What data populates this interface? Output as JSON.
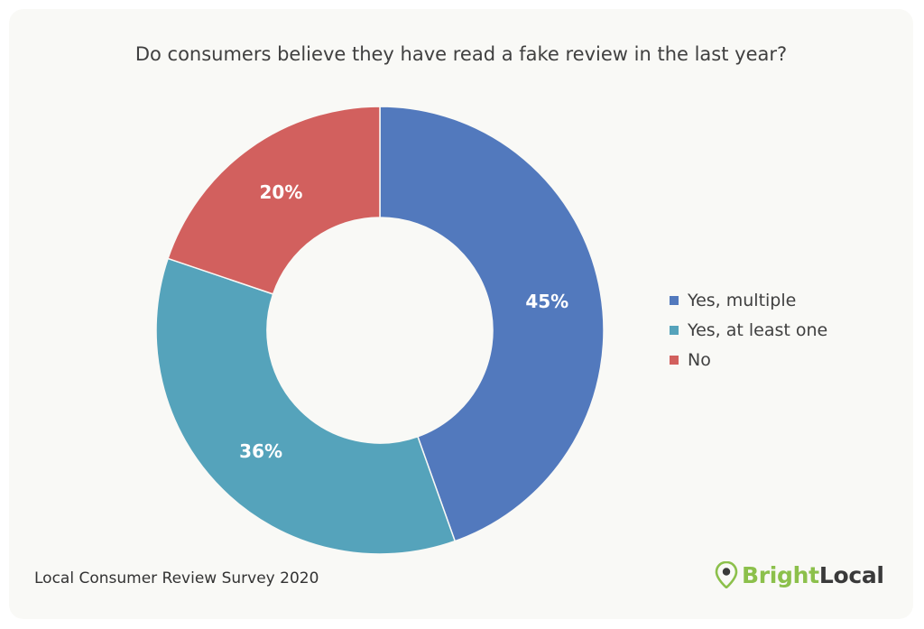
{
  "chart_data": {
    "type": "pie",
    "variant": "donut",
    "title": "Do consumers believe they have read a fake review in the last year?",
    "slices": [
      {
        "label": "Yes, multiple",
        "value": 45,
        "display": "45%",
        "color": "#5279bd"
      },
      {
        "label": "Yes, at least one",
        "value": 36,
        "display": "36%",
        "color": "#55a3bb"
      },
      {
        "label": "No",
        "value": 20,
        "display": "20%",
        "color": "#d2605e"
      }
    ],
    "legend_position": "right"
  },
  "footer": {
    "source": "Local Consumer Review Survey 2020"
  },
  "logo": {
    "icon": "map-pin-icon",
    "bright": "Bright",
    "local": "Local",
    "colors": {
      "bright": "#8cc04b",
      "local": "#3a3a3a"
    }
  }
}
